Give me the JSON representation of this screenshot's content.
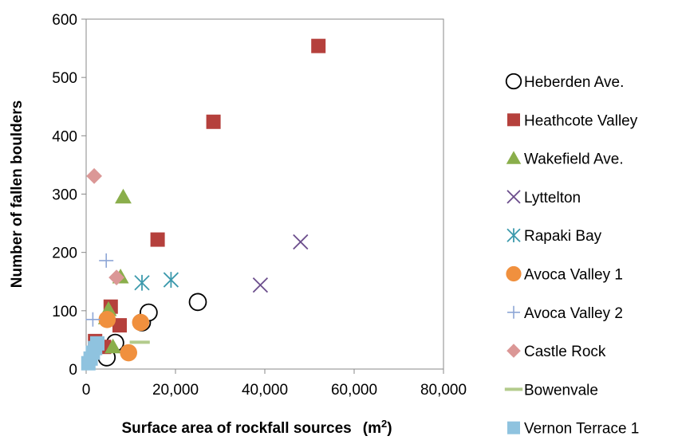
{
  "chart_data": {
    "type": "scatter",
    "title": "",
    "xlabel": "Surface area of rockfall sources",
    "xlabel_unit": "(m",
    "xlabel_sup": "2",
    "xlabel_close": ")",
    "ylabel": "Number of fallen boulders",
    "xlim": [
      0,
      80000
    ],
    "ylim": [
      0,
      600
    ],
    "x_ticks": [
      0,
      20000,
      40000,
      60000,
      80000
    ],
    "x_tick_labels": [
      "0",
      "20,000",
      "40,000",
      "60,000",
      "80,000"
    ],
    "y_ticks": [
      0,
      100,
      200,
      300,
      400,
      500,
      600
    ],
    "y_tick_labels": [
      "0",
      "100",
      "200",
      "300",
      "400",
      "500",
      "600"
    ],
    "grid": false,
    "legend_position": "right",
    "series": [
      {
        "name": "Heberden Ave.",
        "marker": "open-circle",
        "color": "#000000",
        "points": [
          [
            4600,
            20
          ],
          [
            6500,
            45
          ],
          [
            12500,
            80
          ],
          [
            14000,
            97
          ],
          [
            25000,
            115
          ]
        ]
      },
      {
        "name": "Heathcote Valley",
        "marker": "square",
        "color": "#b5403c",
        "points": [
          [
            2000,
            48
          ],
          [
            4000,
            38
          ],
          [
            5500,
            107
          ],
          [
            7500,
            75
          ],
          [
            16000,
            222
          ],
          [
            28500,
            424
          ],
          [
            52000,
            554
          ]
        ]
      },
      {
        "name": "Wakefield Ave.",
        "marker": "triangle",
        "color": "#8aae4b",
        "points": [
          [
            4500,
            88
          ],
          [
            5000,
            102
          ],
          [
            6000,
            38
          ],
          [
            7700,
            158
          ],
          [
            8300,
            295
          ]
        ]
      },
      {
        "name": "Lyttelton",
        "marker": "x",
        "color": "#6b4d8c",
        "points": [
          [
            39000,
            144
          ],
          [
            48000,
            218
          ]
        ]
      },
      {
        "name": "Rapaki Bay",
        "marker": "asterisk",
        "color": "#3d9aad",
        "points": [
          [
            12500,
            148
          ],
          [
            19000,
            153
          ]
        ]
      },
      {
        "name": "Avoca Valley 1",
        "marker": "circle",
        "color": "#f0903e",
        "points": [
          [
            4700,
            85
          ],
          [
            9500,
            28
          ],
          [
            12200,
            80
          ]
        ]
      },
      {
        "name": "Avoca Valley 2",
        "marker": "plus",
        "color": "#8ea6d6",
        "points": [
          [
            1500,
            85
          ],
          [
            4500,
            186
          ]
        ]
      },
      {
        "name": "Castle Rock",
        "marker": "diamond",
        "color": "#db9796",
        "points": [
          [
            1800,
            331
          ],
          [
            6800,
            157
          ]
        ]
      },
      {
        "name": "Bowenvale",
        "marker": "dash",
        "color": "#b3cb8c",
        "points": [
          [
            12000,
            46
          ]
        ]
      },
      {
        "name": "Vernon Terrace 1",
        "marker": "square",
        "color": "#8fc3df",
        "points": [
          [
            500,
            10
          ],
          [
            1000,
            18
          ],
          [
            1500,
            28
          ],
          [
            2000,
            36
          ],
          [
            2500,
            44
          ]
        ]
      }
    ]
  }
}
